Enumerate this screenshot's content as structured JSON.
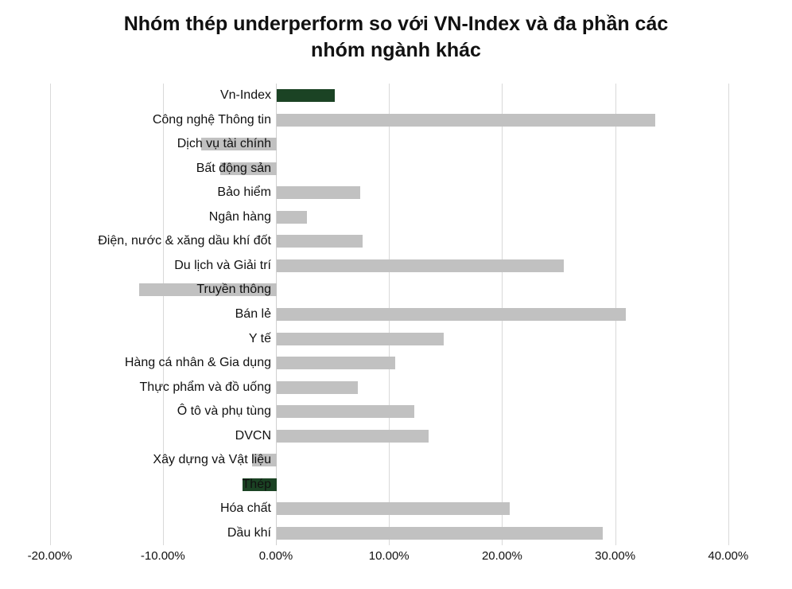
{
  "chart_data": {
    "type": "bar",
    "orientation": "horizontal",
    "title": "Nhóm thép underperform so với VN-Index và đa phần các nhóm ngành khác",
    "xlabel": "",
    "ylabel": "",
    "categories": [
      "Vn-Index",
      "Công nghệ Thông tin",
      "Dịch vụ tài chính",
      "Bất động sản",
      "Bảo hiểm",
      "Ngân hàng",
      "Điện, nước & xăng dầu khí đốt",
      "Du lịch và Giải trí",
      "Truyền thông",
      "Bán lẻ",
      "Y tế",
      "Hàng cá nhân & Gia dụng",
      "Thực phẩm và đồ uống",
      "Ô tô và phụ tùng",
      "DVCN",
      "Xây dựng và Vật liệu",
      "Thép",
      "Hóa chất",
      "Dầu khí"
    ],
    "values_percent": [
      5.1,
      33.5,
      -6.7,
      -5.0,
      7.4,
      2.7,
      7.6,
      25.4,
      -12.2,
      30.9,
      14.8,
      10.5,
      7.2,
      12.2,
      13.4,
      -2.2,
      -3.0,
      20.6,
      28.8
    ],
    "highlighted_categories": [
      "Vn-Index",
      "Thép"
    ],
    "highlight_indices": [
      0,
      16
    ],
    "xlim": [
      -20,
      40
    ],
    "x_tick_values": [
      -20,
      -10,
      0,
      10,
      20,
      30,
      40
    ],
    "x_tick_labels": [
      "-20.00%",
      "-10.00%",
      "0.00%",
      "10.00%",
      "20.00%",
      "30.00%",
      "40.00%"
    ],
    "grid": "vertical",
    "legend": "none",
    "colors": {
      "highlight_green": "#1b4324",
      "bar_gray": "#c1c1c1",
      "gridline": "#d9d9d9",
      "text": "#111111"
    }
  }
}
